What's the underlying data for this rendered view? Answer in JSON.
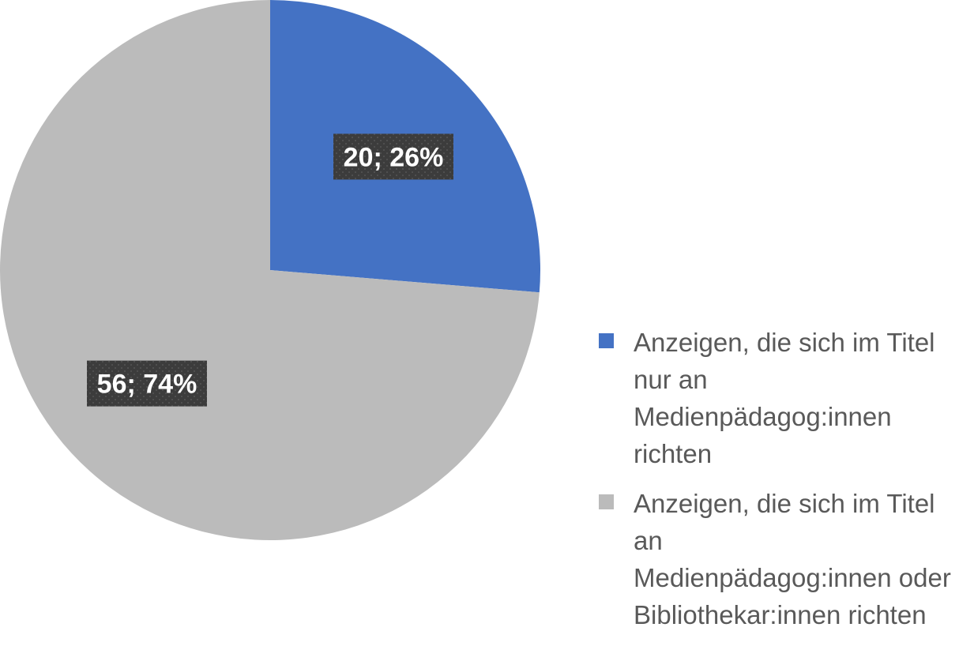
{
  "chart_data": {
    "type": "pie",
    "title": "",
    "categories": [
      "Anzeigen, die sich im Titel nur an Medienpädagog:innen richten",
      "Anzeigen, die sich im Titel an Medienpädagog:innen oder Bibliothekar:innen richten"
    ],
    "values": [
      20,
      56
    ],
    "percentages": [
      26,
      74
    ],
    "data_labels": [
      "20; 26%",
      "56; 74%"
    ],
    "colors": [
      "#4472C4",
      "#BBBBBB"
    ],
    "legend_position": "right"
  },
  "legend": {
    "items": [
      {
        "lines": [
          "Anzeigen, die sich im Titel",
          "nur an Medienpädagog:innen",
          "richten"
        ],
        "color": "#4472C4"
      },
      {
        "lines": [
          "Anzeigen, die sich im Titel an",
          "Medienpädagog:innen oder",
          "Bibliothekar:innen richten"
        ],
        "color": "#BBBBBB"
      }
    ]
  }
}
